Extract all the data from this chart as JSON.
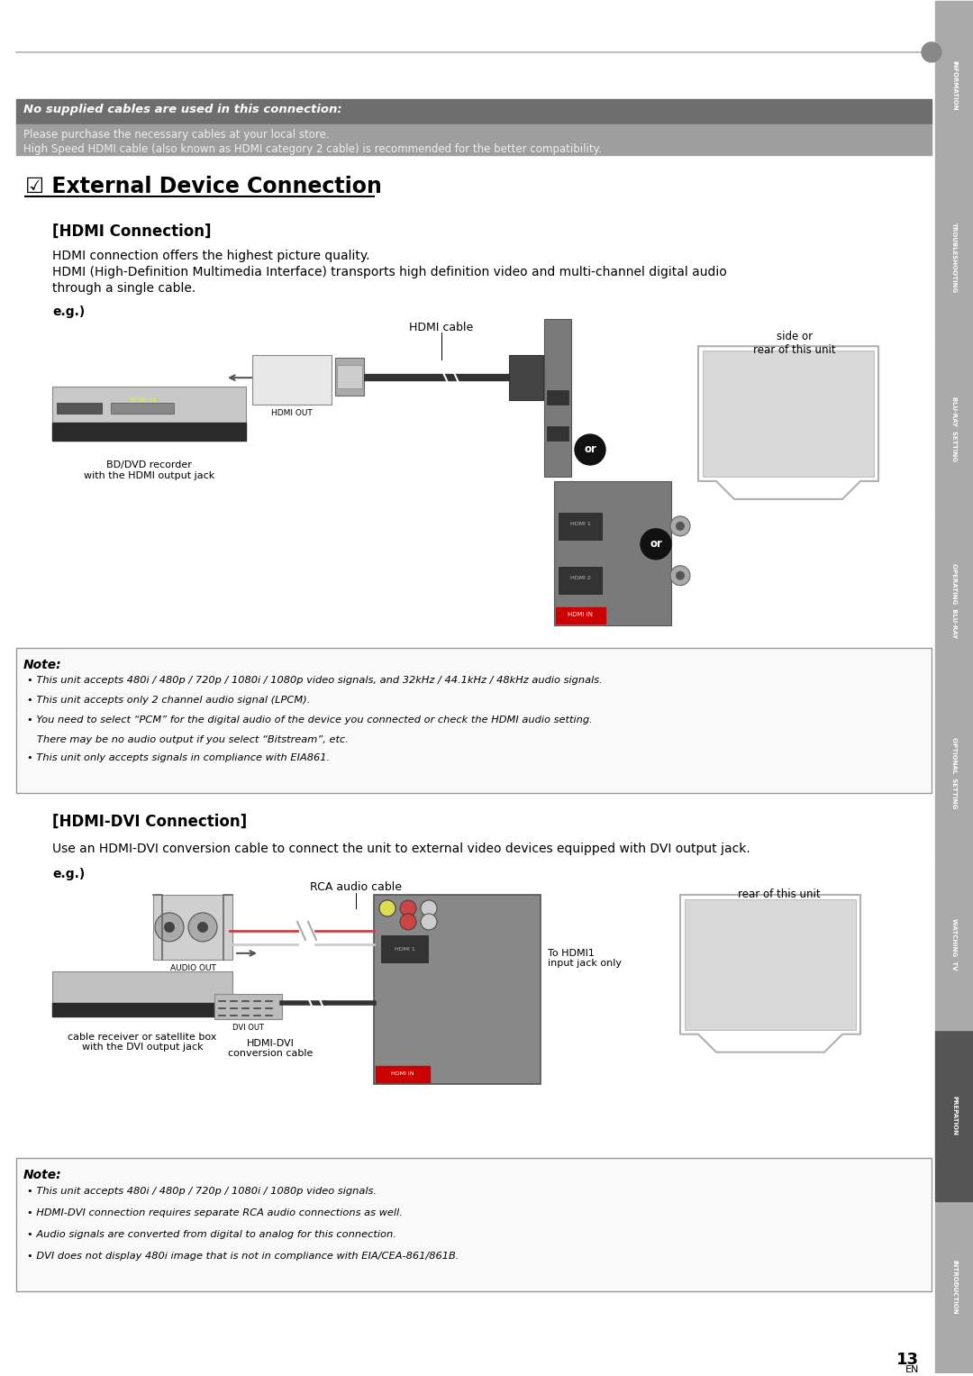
{
  "bg_color": "#ffffff",
  "page_width": 10.8,
  "page_height": 15.27,
  "top_bar_italic_text": "No supplied cables are used in this connection:",
  "top_bar_sub1": "Please purchase the necessary cables at your local store.",
  "top_bar_sub2": "High Speed HDMI cable (also known as HDMI category 2 cable) is recommended for the better compatibility.",
  "section_title": "☑ External Device Connection",
  "hdmi_title": "[HDMI Connection]",
  "hdmi_body1": "HDMI connection offers the highest picture quality.",
  "hdmi_body2": "HDMI (High-Definition Multimedia Interface) transports high definition video and multi-channel digital audio",
  "hdmi_body3": "through a single cable.",
  "hdmi_eg": "e.g.)",
  "hdmi_cable_label": "HDMI cable",
  "hdmi_out_label": "HDMI OUT",
  "side_or_rear": "side or\nrear of this unit",
  "bd_dvd_label": "BD/DVD recorder\nwith the HDMI output jack",
  "note1_title": "Note:",
  "note1_b1": "This unit accepts 480i / 480p / 720p / 1080i / 1080p video signals, and 32kHz / 44.1kHz / 48kHz audio signals.",
  "note1_b2": "This unit accepts only 2 channel audio signal (LPCM).",
  "note1_b3a": "You need to select “PCM” for the digital audio of the device you connected or check the HDMI audio setting.",
  "note1_b3b": "   There may be no audio output if you select “Bitstream”, etc.",
  "note1_b4": "This unit only accepts signals in compliance with EIA861.",
  "hdmi_dvi_title": "[HDMI-DVI Connection]",
  "hdmi_dvi_body": "Use an HDMI-DVI conversion cable to connect the unit to external video devices equipped with DVI output jack.",
  "hdmi_dvi_eg": "e.g.)",
  "rca_audio_label": "RCA audio cable",
  "audio_out_label": "AUDIO OUT",
  "dvi_out_label": "DVI OUT",
  "hdmi_dvi_cable_label": "HDMI-DVI\nconversion cable",
  "to_hdmi1_label": "To HDMI1\ninput jack only",
  "rear_of_unit": "rear of this unit",
  "cable_rec_label": "cable receiver or satellite box\nwith the DVI output jack",
  "note2_title": "Note:",
  "note2_b1": "This unit accepts 480i / 480p / 720p / 1080i / 1080p video signals.",
  "note2_b2": "HDMI-DVI connection requires separate RCA audio connections as well.",
  "note2_b3": "Audio signals are converted from digital to analog for this connection.",
  "note2_b4": "DVI does not display 480i image that is not in compliance with EIA/CEA-861/861B.",
  "page_num": "13",
  "page_en": "EN",
  "sidebar_labels": [
    "INTRODUCTION",
    "PREPATION",
    "WATCHING  TV",
    "OPTIONAL  SETTING",
    "OPERATING  BLU-RAY",
    "BLU-RAY  SETTING",
    "TROUBLESHOOTING",
    "INFORMATION"
  ],
  "sidebar_colors": [
    "#aaaaaa",
    "#555555",
    "#aaaaaa",
    "#aaaaaa",
    "#aaaaaa",
    "#aaaaaa",
    "#aaaaaa",
    "#aaaaaa"
  ]
}
